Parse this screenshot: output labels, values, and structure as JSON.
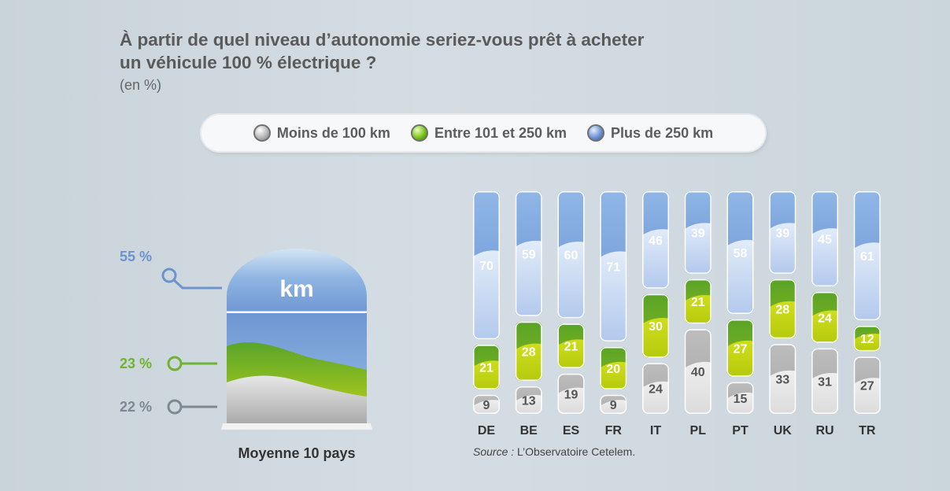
{
  "title_line1": "À partir de quel niveau d’autonomie seriez-vous prêt à acheter",
  "title_line2": "un véhicule 100 % électrique ?",
  "unit": "(en %)",
  "legend": [
    {
      "label": "Moins de 100 km",
      "color": "#b9b9b9"
    },
    {
      "label": "Entre 101 et 250 km",
      "color": "#86c31f"
    },
    {
      "label": "Plus de 250 km",
      "color": "#7fa6dc"
    }
  ],
  "average": {
    "label": "Moyenne 10 pays",
    "icon_text": "km",
    "values": [
      {
        "series": "Plus de 250 km",
        "value": 55,
        "text": "55 %",
        "color": "#6d93cf"
      },
      {
        "series": "Entre 101 et 250 km",
        "value": 23,
        "text": "23 %",
        "color": "#6fb330"
      },
      {
        "series": "Moins de 100 km",
        "value": 22,
        "text": "22 %",
        "color": "#7c8894"
      }
    ]
  },
  "source_prefix": "Source :",
  "source_text": " L’Observatoire Cetelem.",
  "chart_data": {
    "type": "bar",
    "stacked": true,
    "categories": [
      "DE",
      "BE",
      "ES",
      "FR",
      "IT",
      "PL",
      "PT",
      "UK",
      "RU",
      "TR"
    ],
    "series": [
      {
        "name": "Moins de 100 km",
        "values": [
          9,
          13,
          19,
          9,
          24,
          40,
          15,
          33,
          31,
          27
        ]
      },
      {
        "name": "Entre 101 et 250 km",
        "values": [
          21,
          28,
          21,
          20,
          30,
          21,
          27,
          28,
          24,
          12
        ]
      },
      {
        "name": "Plus de 250 km",
        "values": [
          70,
          59,
          60,
          71,
          46,
          39,
          58,
          39,
          45,
          61
        ]
      }
    ],
    "ylim": [
      0,
      100
    ],
    "grid": false,
    "legend_position": "top"
  }
}
